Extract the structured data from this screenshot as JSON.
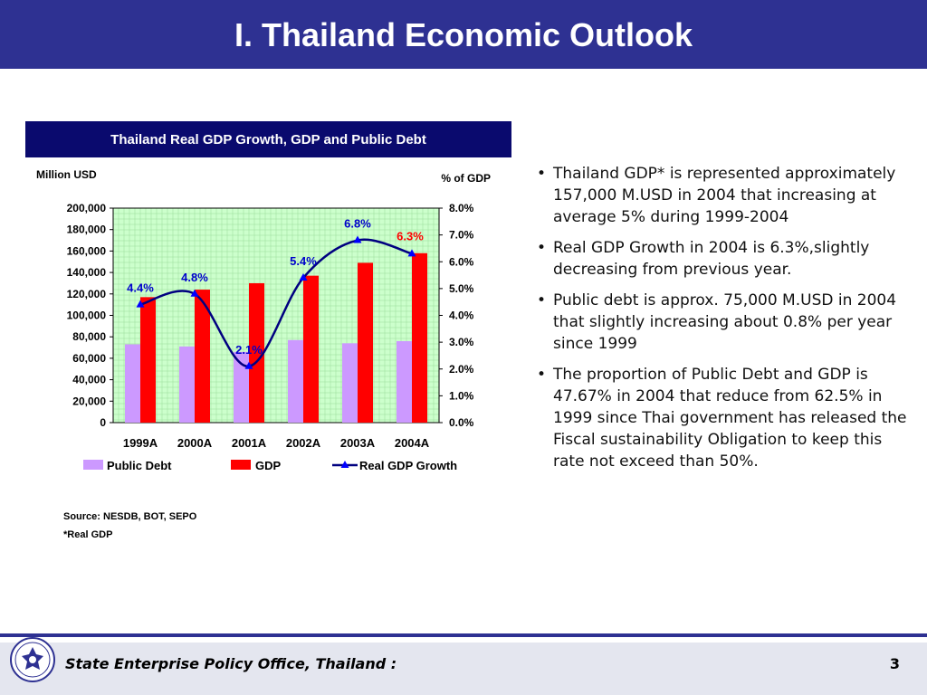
{
  "slide": {
    "title": "I. Thailand Economic Outlook",
    "chart_header": "Thailand Real GDP Growth, GDP and Public Debt",
    "bullets": [
      "Thailand GDP* is represented approximately 157,000 M.USD in 2004 that increasing at average 5% during 1999-2004",
      "Real GDP Growth in 2004 is 6.3%,slightly decreasing from previous year.",
      "Public debt is approx. 75,000 M.USD in 2004 that slightly increasing about 0.8% per year since 1999",
      "The proportion of Public Debt and GDP is 47.67% in 2004 that reduce from 62.5% in 1999 since Thai government has released the Fiscal sustainability Obligation to keep this rate not exceed than 50%."
    ],
    "source": "Source: NESDB, BOT, SEPO",
    "footnote": "*Real GDP",
    "footer_text": "State Enterprise Policy Office, Thailand :",
    "page_number": "3"
  },
  "colors": {
    "title_bar": "#2e3192",
    "header_bg": "#0a0a6e",
    "plot_bg": "#ccffcc",
    "public_debt": "#cc99ff",
    "gdp": "#ff0000",
    "growth_line": "#000080",
    "growth_marker": "#0000ff",
    "label_blue": "#0000cc",
    "label_red": "#ff0000"
  },
  "chart_data": {
    "type": "bar",
    "categories": [
      "1999A",
      "2000A",
      "2001A",
      "2002A",
      "2003A",
      "2004A"
    ],
    "series": [
      {
        "name": "Public Debt",
        "type": "bar",
        "axis": "left",
        "values": [
          73000,
          71000,
          66000,
          77000,
          74000,
          76000
        ]
      },
      {
        "name": "GDP",
        "type": "bar",
        "axis": "left",
        "values": [
          117000,
          124000,
          130000,
          137000,
          149000,
          158000
        ]
      },
      {
        "name": "Real GDP Growth",
        "type": "line",
        "axis": "right",
        "values": [
          4.4,
          4.8,
          2.1,
          5.4,
          6.8,
          6.3
        ]
      }
    ],
    "data_labels": [
      "4.4%",
      "4.8%",
      "2.1%",
      "5.4%",
      "6.8%",
      "6.3%"
    ],
    "ylabel": "Million USD",
    "y2label": "% of GDP",
    "ylim": [
      0,
      200000
    ],
    "y2lim": [
      0,
      8
    ],
    "yticks": [
      "0",
      "20,000",
      "40,000",
      "60,000",
      "80,000",
      "100,000",
      "120,000",
      "140,000",
      "160,000",
      "180,000",
      "200,000"
    ],
    "y2ticks": [
      "0.0%",
      "1.0%",
      "2.0%",
      "3.0%",
      "4.0%",
      "5.0%",
      "6.0%",
      "7.0%",
      "8.0%"
    ],
    "grid": true,
    "legend": "bottom"
  }
}
